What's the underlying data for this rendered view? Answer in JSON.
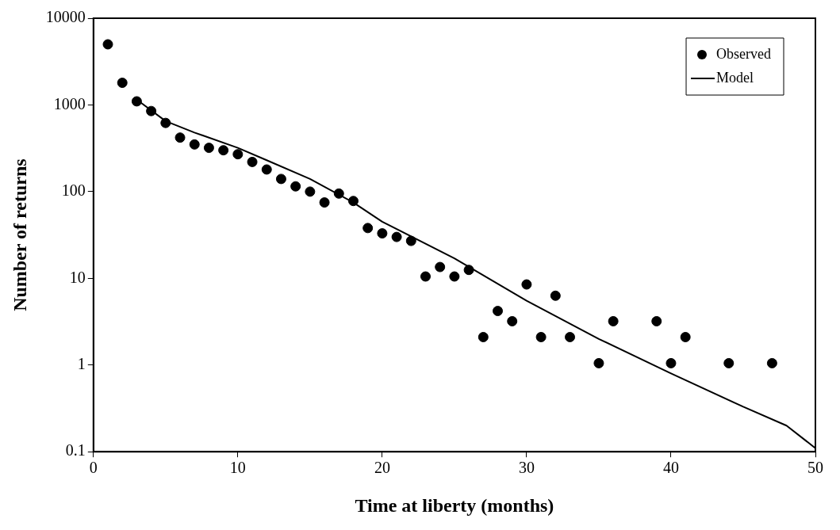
{
  "chart_data": {
    "type": "scatter",
    "xlabel": "Time at liberty (months)",
    "ylabel": "Number of returns",
    "log": "y",
    "grid": false,
    "legend": "top right",
    "xlim": [
      0,
      50
    ],
    "xticks": [
      0,
      10,
      20,
      30,
      40,
      50
    ],
    "ylim": [
      0.1,
      10000
    ],
    "yticks": [
      0.1,
      1,
      10,
      100,
      1000,
      10000
    ],
    "series": [
      {
        "name": "Observed",
        "type": "scatter",
        "color": "#000000",
        "marker": "circle",
        "x": [
          1,
          2,
          3,
          4,
          5,
          6,
          7,
          8,
          9,
          10,
          11,
          12,
          13,
          14,
          15,
          16,
          17,
          18,
          19,
          20,
          21,
          22,
          23,
          24,
          25,
          26,
          27,
          28,
          29,
          30,
          31,
          32,
          33,
          35,
          36,
          39,
          40,
          41,
          44,
          47
        ],
        "values": [
          5000,
          1800,
          1100,
          850,
          620,
          420,
          350,
          320,
          300,
          270,
          220,
          180,
          140,
          115,
          100,
          75,
          95,
          78,
          38,
          33,
          30,
          27,
          10.5,
          13.5,
          10.5,
          12.5,
          2.1,
          4.2,
          3.2,
          8.5,
          2.1,
          6.3,
          2.1,
          1.05,
          3.2,
          3.2,
          1.05,
          2.1,
          1.05,
          1.05
        ]
      },
      {
        "name": "Model",
        "type": "line",
        "color": "#000000",
        "marker": "none",
        "line_style": "solid",
        "x": [
          3,
          5,
          7,
          10,
          12,
          15,
          18,
          20,
          25,
          30,
          35,
          40,
          45,
          48,
          50
        ],
        "values": [
          1150,
          650,
          480,
          320,
          230,
          140,
          75,
          45,
          17,
          5.5,
          2,
          0.8,
          0.33,
          0.2,
          0.11
        ]
      }
    ]
  }
}
